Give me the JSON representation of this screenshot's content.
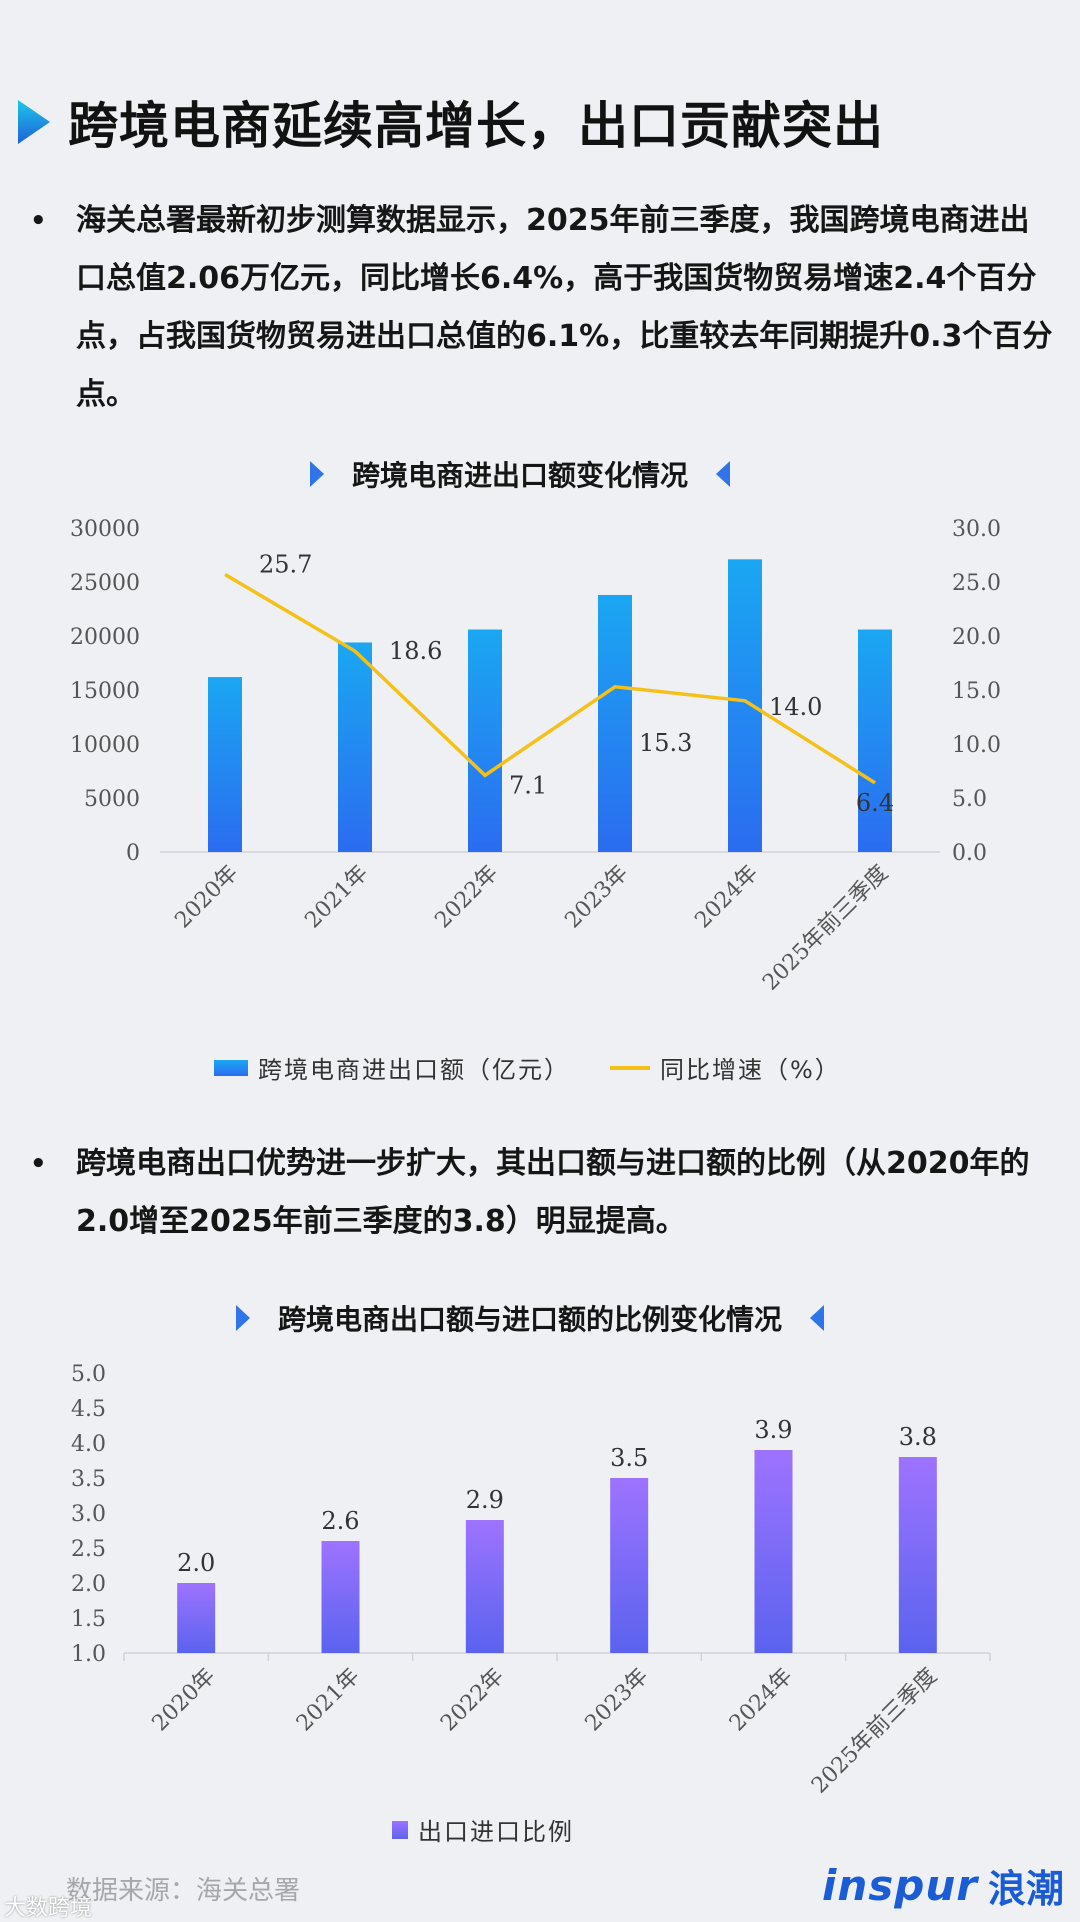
{
  "page_title": "跨境电商延续高增长，出口贡献突出",
  "paragraphs": [
    "海关总署最新初步测算数据显示，2025年前三季度，我国跨境电商进出口总值2.06万亿元，同比增长6.4%，高于我国货物贸易增速2.4个百分点，占我国货物贸易进出口总值的6.1%，比重较去年同期提升0.3个百分点。",
    "跨境电商出口优势进一步扩大，其出口额与进口额的比例（从2020年的2.0增至2025年前三季度的3.8）明显提高。"
  ],
  "bullet": "•",
  "colors": {
    "accent_blue": "#1a5cd6",
    "bar_top": "#1aa7f2",
    "bar_bottom": "#2b6cf0",
    "line": "#f5c018",
    "purple_top": "#9d73ff",
    "purple_bottom": "#5a63ee"
  },
  "chart_data": [
    {
      "type": "bar+line",
      "title": "跨境电商进出口额变化情况",
      "categories": [
        "2020年",
        "2021年",
        "2022年",
        "2023年",
        "2024年",
        "2025年前三季度"
      ],
      "series": [
        {
          "name": "跨境电商进出口额（亿元）",
          "type": "bar",
          "axis": "left",
          "values": [
            16200,
            19400,
            20600,
            23800,
            27100,
            20600
          ]
        },
        {
          "name": "同比增速（%）",
          "type": "line",
          "axis": "right",
          "values": [
            25.7,
            18.6,
            7.1,
            15.3,
            14.0,
            6.4
          ]
        }
      ],
      "data_labels": [
        "25.7",
        "18.6",
        "7.1",
        "15.3",
        "14.0",
        "6.4"
      ],
      "y_left": {
        "min": 0,
        "max": 30000,
        "ticks": [
          "0",
          "5000",
          "10000",
          "15000",
          "20000",
          "25000",
          "30000"
        ]
      },
      "y_right": {
        "min": 0,
        "max": 30,
        "ticks": [
          "0.0",
          "5.0",
          "10.0",
          "15.0",
          "20.0",
          "25.0",
          "30.0"
        ]
      },
      "legend_position": "bottom",
      "grid": false
    },
    {
      "type": "bar",
      "title": "跨境电商出口额与进口额的比例变化情况",
      "categories": [
        "2020年",
        "2021年",
        "2022年",
        "2023年",
        "2024年",
        "2025年前三季度"
      ],
      "series": [
        {
          "name": "出口进口比例",
          "values": [
            2.0,
            2.6,
            2.9,
            3.5,
            3.9,
            3.8
          ]
        }
      ],
      "data_labels": [
        "2.0",
        "2.6",
        "2.9",
        "3.5",
        "3.9",
        "3.8"
      ],
      "y": {
        "min": 1.0,
        "max": 5.0,
        "ticks": [
          "1.0",
          "1.5",
          "2.0",
          "2.5",
          "3.0",
          "3.5",
          "4.0",
          "4.5",
          "5.0"
        ]
      },
      "legend_position": "bottom",
      "grid": false
    }
  ],
  "source": "数据来源：海关总署",
  "brand": {
    "en": "inspur",
    "cn": "浪潮"
  },
  "watermark": "大数跨境"
}
